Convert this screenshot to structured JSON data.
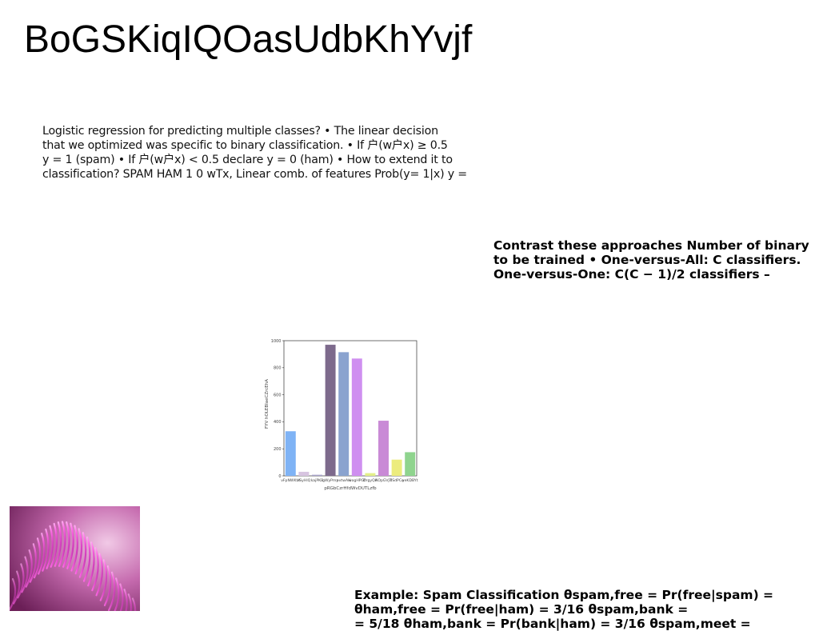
{
  "page": {
    "title": "BoGSKiqIQOasUdbKhYvjf",
    "paragraph_1": [
      "Logistic regression for predicting multiple classes? • The linear decision",
      "that we optimized was specific to binary classification. • If ⼾(w⼾x) ≥ 0.5",
      "y = 1 (spam) • If ⼾(w⼾x) < 0.5 declare y = 0 (ham) • How to extend it to",
      "classification? SPAM HAM 1 0 wTx, Linear comb. of features Prob(y= 1|x) y ="
    ],
    "paragraph_2": [
      "Contrast these approaches Number of binary",
      "to be trained • One-versus-All: C classifiers.",
      "One-versus-One: C(C − 1)/2 classifiers –"
    ],
    "paragraph_3": [
      "Example: Spam Classification θspam,free = Pr(free|spam) =",
      "θham,free = Pr(free|ham) = 3/16 θspam,bank =",
      "= 5/18 θham,bank = Pr(bank|ham) = 3/16 θspam,meet ="
    ]
  },
  "chart_data": {
    "type": "bar",
    "xlabel": "pRGbCzrHfdWvDUTLzfb",
    "ylabel": "FYV hOLEBIaeCZrcEhA",
    "ylim": [
      0,
      1000
    ],
    "yticks": [
      0,
      200,
      400,
      600,
      800,
      1000
    ],
    "grid": false,
    "categories": [
      "vFpNWKtX",
      "vSyHlQ",
      "kajPKB",
      "gWyPmy",
      "nvtwAH",
      "wogHPGf",
      "DrgyQK",
      "AOpGVJT",
      "dSdPCo",
      "yeKDBYt"
    ],
    "values": [
      330,
      30,
      8,
      970,
      915,
      868,
      20,
      408,
      120,
      175
    ],
    "colors": [
      "#7fb3f5",
      "#d7c4e0",
      "#a6a2c8",
      "#7d6a8c",
      "#8aa3cf",
      "#cf8ff0",
      "#e3ef8a",
      "#c98ad6",
      "#ecec7d",
      "#8fd48e"
    ]
  },
  "image": {
    "thumbnail_icon": "abstract-magenta-wave-image"
  }
}
